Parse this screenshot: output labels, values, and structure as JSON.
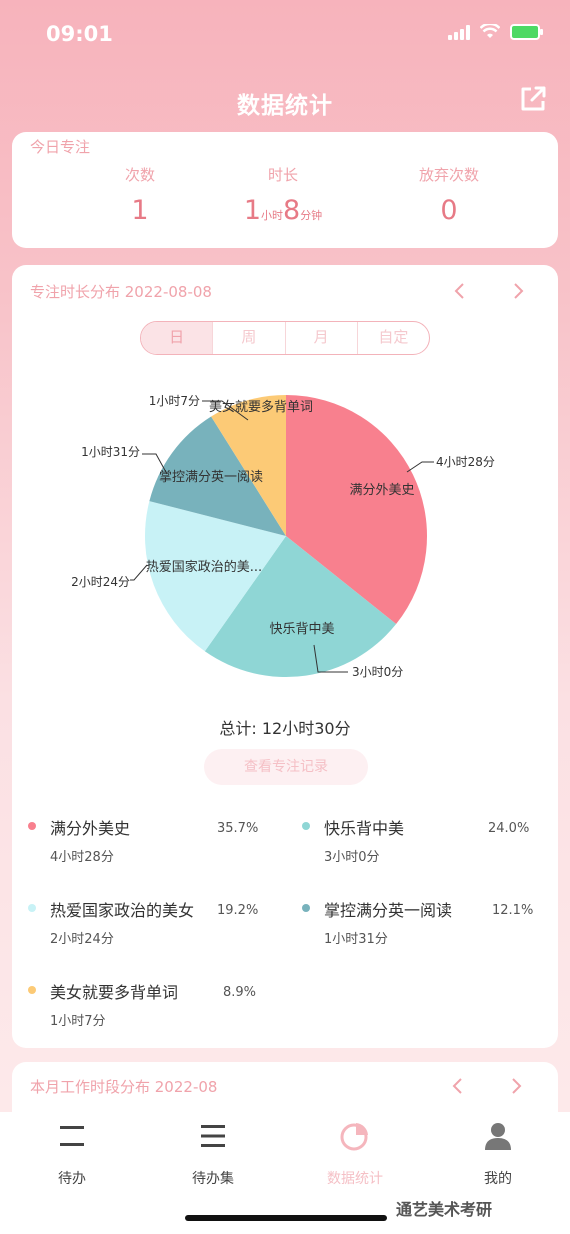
{
  "status_bar": {
    "time": "09:01"
  },
  "header": {
    "title": "数据统计",
    "share_icon": "share-icon"
  },
  "today": {
    "section_label": "今日专注",
    "stats": [
      {
        "label": "次数",
        "value": "1"
      },
      {
        "label": "时长",
        "value_hours": "1",
        "hours_unit": "小时",
        "value_minutes": "8",
        "minutes_unit": "分钟"
      },
      {
        "label": "放弃次数",
        "value": "0"
      }
    ]
  },
  "distribution": {
    "section_label": "专注时长分布 2022-08-08",
    "segments": [
      "日",
      "周",
      "月",
      "自定"
    ],
    "active_segment": "日",
    "total_text": "总计: 12小时30分",
    "view_button": "查看专注记录",
    "colors": {
      "red": "#f8808e",
      "teal": "#8fd6d5",
      "light": "#c8f2f6",
      "slate": "#78b2bc",
      "yellow": "#fcca76"
    }
  },
  "chart_data": {
    "type": "pie",
    "total": "12小时30分",
    "slices": [
      {
        "name": "满分外美史",
        "duration": "4小时28分",
        "percent": 35.7,
        "color": "#f8808e"
      },
      {
        "name": "快乐背中美",
        "duration": "3小时0分",
        "percent": 24.0,
        "color": "#8fd6d5"
      },
      {
        "name": "热爱国家政治的美女",
        "duration": "2小时24分",
        "percent": 19.2,
        "color": "#c8f2f6"
      },
      {
        "name": "掌控满分英一阅读",
        "duration": "1小时31分",
        "percent": 12.1,
        "color": "#78b2bc"
      },
      {
        "name": "美女就要多背单词",
        "duration": "1小时7分",
        "percent": 8.9,
        "color": "#fcca76"
      }
    ],
    "slice_labels": [
      "满分外美史",
      "快乐背中美",
      "热爱国家政治的美...",
      "掌控满分英一阅读",
      "美女就要多背单词"
    ],
    "outer_labels": [
      "4小时28分",
      "3小时0分",
      "2小时24分",
      "1小时31分",
      "1小时7分"
    ]
  },
  "legend": [
    {
      "name": "满分外美史",
      "duration": "4小时28分",
      "percent": "35.7%",
      "color": "#f8808e"
    },
    {
      "name": "快乐背中美",
      "duration": "3小时0分",
      "percent": "24.0%",
      "color": "#8fd6d5"
    },
    {
      "name": "热爱国家政治的美女",
      "duration": "2小时24分",
      "percent": "19.2%",
      "color": "#c8f2f6"
    },
    {
      "name": "掌控满分英一阅读",
      "duration": "1小时31分",
      "percent": "12.1%",
      "color": "#78b2bc"
    },
    {
      "name": "美女就要多背单词",
      "duration": "1小时7分",
      "percent": "8.9%",
      "color": "#fcca76"
    }
  ],
  "month": {
    "section_label": "本月工作时段分布 2022-08"
  },
  "tabbar": {
    "items": [
      {
        "label": "待办",
        "icon": "todo-icon"
      },
      {
        "label": "待办集",
        "icon": "list-icon"
      },
      {
        "label": "数据统计",
        "icon": "pie-chart-icon"
      },
      {
        "label": "我的",
        "icon": "user-icon"
      }
    ]
  },
  "watermark": "通艺美术考研"
}
